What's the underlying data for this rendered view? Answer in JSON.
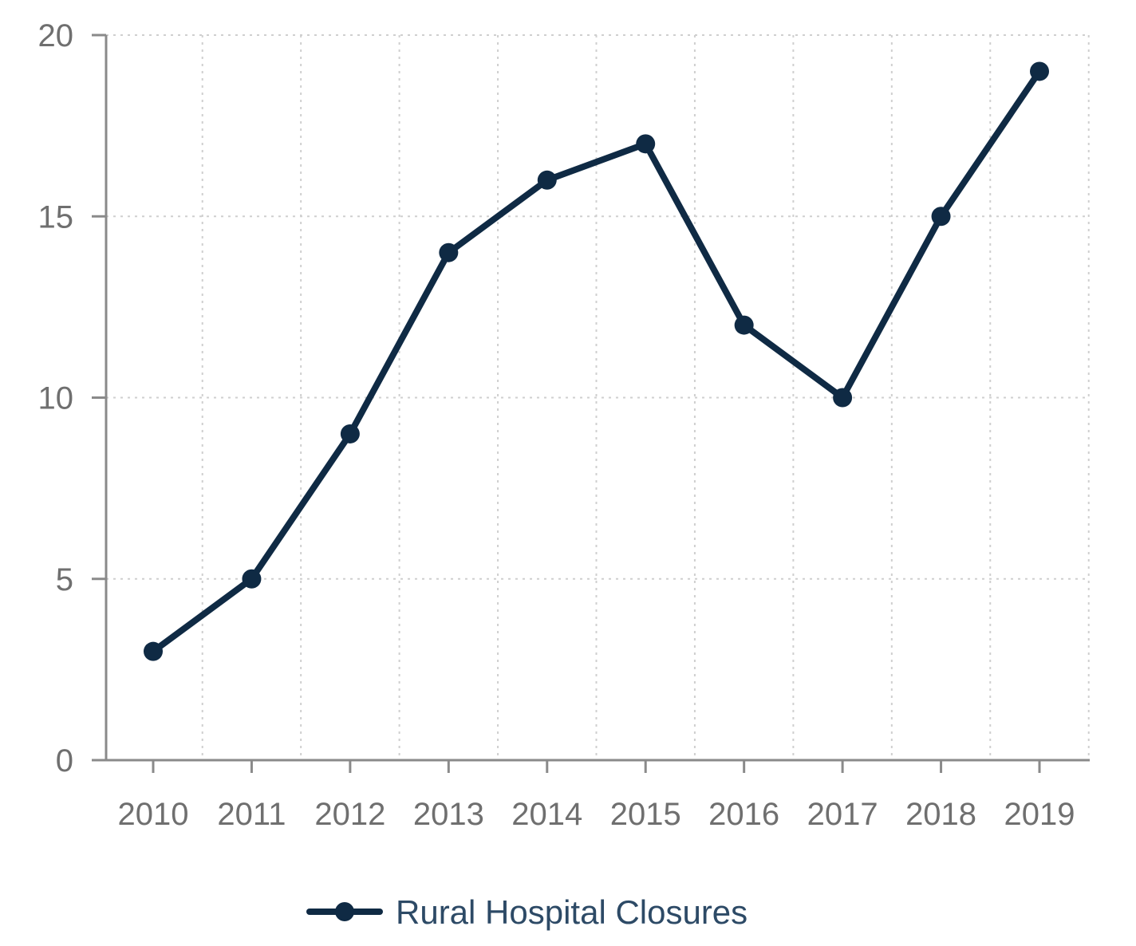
{
  "chart_data": {
    "type": "line",
    "categories": [
      "2010",
      "2011",
      "2012",
      "2013",
      "2014",
      "2015",
      "2016",
      "2017",
      "2018",
      "2019"
    ],
    "series": [
      {
        "name": "Rural Hospital Closures",
        "values": [
          3,
          5,
          9,
          14,
          16,
          17,
          12,
          10,
          15,
          19
        ],
        "color": "#0f2a44"
      }
    ],
    "ylim": [
      0,
      20
    ],
    "yticks": [
      0,
      5,
      10,
      15,
      20
    ],
    "grid": true,
    "legend_position": "bottom-center"
  }
}
